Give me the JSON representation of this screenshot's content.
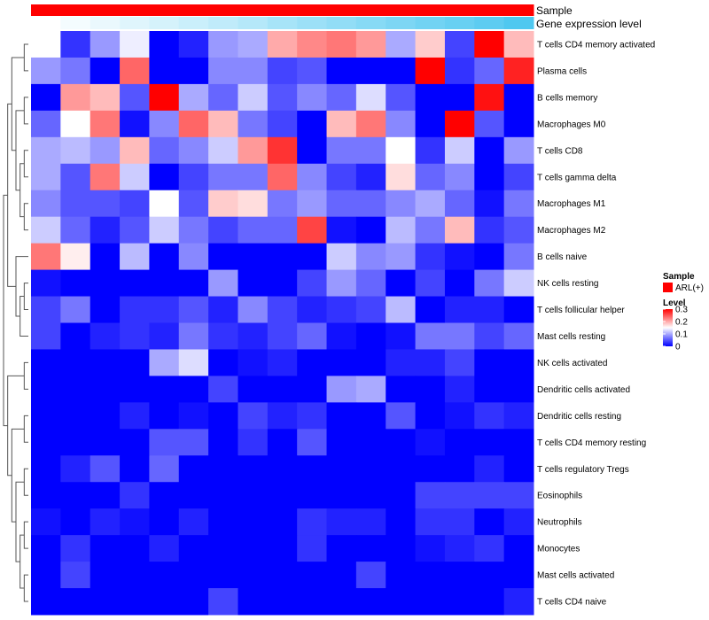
{
  "chart_data": {
    "type": "heatmap",
    "title": "",
    "annotations": {
      "sample_label": "Sample",
      "gene_expression_label": "Gene expression level"
    },
    "rows": [
      "T cells CD4 memory activated",
      "Plasma cells",
      "B cells memory",
      "Macrophages M0",
      "T cells CD8",
      "T cells gamma delta",
      "Macrophages M1",
      "Macrophages M2",
      "B cells naive",
      "NK cells resting",
      "T cells follicular helper",
      "Mast cells resting",
      "NK cells activated",
      "Dendritic cells activated",
      "Dendritic cells resting",
      "T cells CD4 memory resting",
      "T cells regulatory  Tregs",
      "Eosinophils",
      "Neutrophils",
      "Monocytes",
      "Mast cells activated",
      "T cells CD4 naive"
    ],
    "values": [
      [
        0.15,
        0.03,
        0.09,
        0.14,
        0.0,
        0.02,
        0.09,
        0.1,
        0.2,
        0.22,
        0.23,
        0.21,
        0.1,
        0.18,
        0.04,
        0.3,
        0.19
      ],
      [
        0.09,
        0.07,
        0.0,
        0.24,
        0.0,
        0.0,
        0.08,
        0.08,
        0.04,
        0.05,
        0.0,
        0.0,
        0.0,
        0.3,
        0.03,
        0.06,
        0.28
      ],
      [
        0.0,
        0.21,
        0.19,
        0.05,
        0.3,
        0.1,
        0.06,
        0.12,
        0.05,
        0.08,
        0.06,
        0.13,
        0.05,
        0.0,
        0.0,
        0.29,
        0.0
      ],
      [
        0.06,
        0.15,
        0.23,
        0.01,
        0.08,
        0.24,
        0.19,
        0.07,
        0.04,
        0.0,
        0.19,
        0.23,
        0.08,
        0.0,
        0.3,
        0.05,
        0.0
      ],
      [
        0.1,
        0.11,
        0.09,
        0.19,
        0.06,
        0.08,
        0.12,
        0.21,
        0.27,
        0.0,
        0.07,
        0.07,
        0.15,
        0.03,
        0.12,
        0.0,
        0.09
      ],
      [
        0.1,
        0.05,
        0.23,
        0.12,
        0.0,
        0.04,
        0.07,
        0.07,
        0.24,
        0.08,
        0.04,
        0.02,
        0.17,
        0.06,
        0.08,
        0.0,
        0.04
      ],
      [
        0.08,
        0.05,
        0.05,
        0.04,
        0.15,
        0.05,
        0.18,
        0.17,
        0.07,
        0.09,
        0.06,
        0.06,
        0.08,
        0.1,
        0.06,
        0.01,
        0.07
      ],
      [
        0.12,
        0.06,
        0.02,
        0.05,
        0.12,
        0.07,
        0.04,
        0.06,
        0.06,
        0.26,
        0.01,
        0.0,
        0.11,
        0.07,
        0.19,
        0.03,
        0.05
      ],
      [
        0.23,
        0.16,
        0.0,
        0.11,
        0.0,
        0.08,
        0.0,
        0.0,
        0.0,
        0.0,
        0.12,
        0.08,
        0.09,
        0.03,
        0.01,
        0.0,
        0.07
      ],
      [
        0.01,
        0.0,
        0.0,
        0.0,
        0.0,
        0.0,
        0.09,
        0.0,
        0.0,
        0.04,
        0.09,
        0.06,
        0.0,
        0.04,
        0.0,
        0.07,
        0.12
      ],
      [
        0.04,
        0.07,
        0.0,
        0.03,
        0.03,
        0.05,
        0.02,
        0.08,
        0.04,
        0.02,
        0.03,
        0.04,
        0.11,
        0.0,
        0.02,
        0.02,
        0.0
      ],
      [
        0.04,
        0.0,
        0.02,
        0.03,
        0.02,
        0.07,
        0.03,
        0.02,
        0.04,
        0.06,
        0.01,
        0.0,
        0.01,
        0.07,
        0.07,
        0.04,
        0.06
      ],
      [
        0.0,
        0.0,
        0.0,
        0.0,
        0.1,
        0.13,
        0.0,
        0.01,
        0.02,
        0.0,
        0.0,
        0.0,
        0.02,
        0.02,
        0.04,
        0.0,
        0.0
      ],
      [
        0.0,
        0.0,
        0.0,
        0.0,
        0.0,
        0.0,
        0.04,
        0.0,
        0.0,
        0.0,
        0.09,
        0.1,
        0.0,
        0.0,
        0.02,
        0.0,
        0.0
      ],
      [
        0.0,
        0.0,
        0.0,
        0.02,
        0.0,
        0.01,
        0.0,
        0.04,
        0.02,
        0.03,
        0.0,
        0.0,
        0.05,
        0.0,
        0.01,
        0.03,
        0.02
      ],
      [
        0.0,
        0.0,
        0.0,
        0.0,
        0.05,
        0.05,
        0.0,
        0.03,
        0.0,
        0.05,
        0.0,
        0.0,
        0.0,
        0.01,
        0.0,
        0.0,
        0.0
      ],
      [
        0.0,
        0.02,
        0.05,
        0.0,
        0.06,
        0.0,
        0.0,
        0.0,
        0.0,
        0.0,
        0.0,
        0.0,
        0.0,
        0.0,
        0.0,
        0.02,
        0.0
      ],
      [
        0.0,
        0.0,
        0.0,
        0.03,
        0.0,
        0.0,
        0.0,
        0.0,
        0.0,
        0.0,
        0.0,
        0.0,
        0.0,
        0.04,
        0.04,
        0.04,
        0.04
      ],
      [
        0.01,
        0.0,
        0.02,
        0.01,
        0.0,
        0.02,
        0.0,
        0.0,
        0.0,
        0.03,
        0.02,
        0.02,
        0.0,
        0.03,
        0.03,
        0.0,
        0.02
      ],
      [
        0.0,
        0.03,
        0.0,
        0.0,
        0.02,
        0.0,
        0.0,
        0.0,
        0.0,
        0.03,
        0.0,
        0.0,
        0.0,
        0.01,
        0.02,
        0.03,
        0.0
      ],
      [
        0.0,
        0.04,
        0.0,
        0.0,
        0.0,
        0.0,
        0.0,
        0.0,
        0.0,
        0.0,
        0.0,
        0.04,
        0.0,
        0.0,
        0.0,
        0.0,
        0.0
      ],
      [
        0.0,
        0.0,
        0.0,
        0.0,
        0.0,
        0.0,
        0.04,
        0.0,
        0.0,
        0.0,
        0.0,
        0.0,
        0.0,
        0.0,
        0.0,
        0.0,
        0.02
      ]
    ],
    "gene_expression_level": [
      0.0,
      0.03,
      0.06,
      0.09,
      0.12,
      0.15,
      0.18,
      0.21,
      0.25,
      0.28,
      0.31,
      0.34,
      0.37,
      0.4,
      0.43,
      0.46,
      0.5
    ],
    "legend": {
      "sample_title": "Sample",
      "sample_entry": "ARL(+)",
      "level_title": "Level",
      "ticks": [
        "0.3",
        "0.2",
        "0.1",
        "0"
      ],
      "range": [
        0,
        0.3
      ]
    },
    "colors": {
      "sample": "#ff0000",
      "low": "#0000ff",
      "mid": "#ffffff",
      "high": "#ff0000",
      "gene_low": "#ffffff",
      "gene_high": "#4fc8f0"
    }
  }
}
